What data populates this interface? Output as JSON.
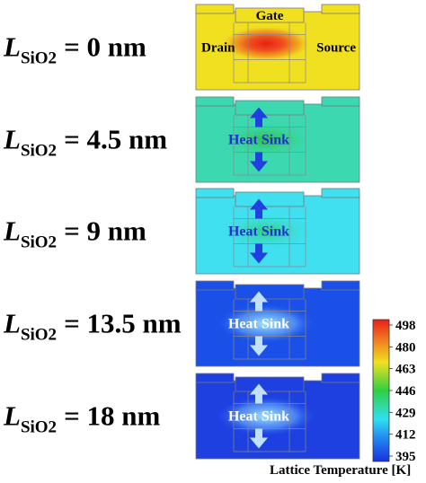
{
  "rows": [
    {
      "symbol": "L",
      "subscript": "SiO2",
      "thickness": "= 0 nm",
      "labels": {
        "gate": "Gate",
        "drain": "Drain",
        "source": "Source"
      }
    },
    {
      "symbol": "L",
      "subscript": "SiO2",
      "thickness": "= 4.5 nm",
      "label": "Heat Sink"
    },
    {
      "symbol": "L",
      "subscript": "SiO2",
      "thickness": "= 9 nm",
      "label": "Heat Sink"
    },
    {
      "symbol": "L",
      "subscript": "SiO2",
      "thickness": "= 13.5 nm",
      "label": "Heat Sink"
    },
    {
      "symbol": "L",
      "subscript": "SiO2",
      "thickness": "= 18 nm",
      "label": "Heat Sink"
    }
  ],
  "colorbar": {
    "ticks": [
      498,
      480,
      463,
      446,
      429,
      412,
      395
    ],
    "title": "Lattice Temperature [K]"
  }
}
